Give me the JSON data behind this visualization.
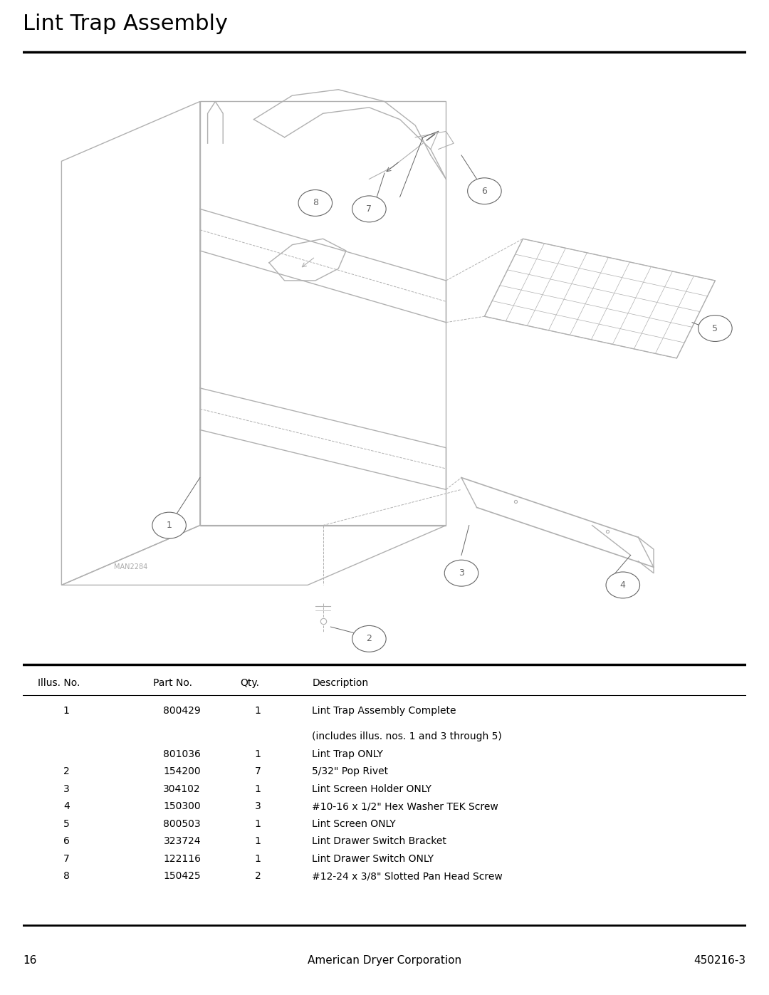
{
  "title": "Lint Trap Assembly",
  "title_fontsize": 22,
  "title_color": "#000000",
  "background_color": "#ffffff",
  "line_color": "#b0b0b0",
  "dark_line_color": "#666666",
  "page_number": "16",
  "company": "American Dryer Corporation",
  "doc_number": "450216-3",
  "watermark": "MAN2284",
  "table_headers": [
    "Illus. No.",
    "Part No.",
    "Qty.",
    "Description"
  ],
  "table_rows": [
    [
      "1",
      "800429",
      "1",
      "Lint Trap Assembly Complete"
    ],
    [
      "",
      "",
      "",
      "(includes illus. nos. 1 and 3 through 5)"
    ],
    [
      "",
      "801036",
      "1",
      "Lint Trap ONLY"
    ],
    [
      "2",
      "154200",
      "7",
      "5/32\" Pop Rivet"
    ],
    [
      "3",
      "304102",
      "1",
      "Lint Screen Holder ONLY"
    ],
    [
      "4",
      "150300",
      "3",
      "#10-16 x 1/2\" Hex Washer TEK Screw"
    ],
    [
      "5",
      "800503",
      "1",
      "Lint Screen ONLY"
    ],
    [
      "6",
      "323724",
      "1",
      "Lint Drawer Switch Bracket"
    ],
    [
      "7",
      "122116",
      "1",
      "Lint Drawer Switch ONLY"
    ],
    [
      "8",
      "150425",
      "2",
      "#12-24 x 3/8\" Slotted Pan Head Screw"
    ]
  ]
}
